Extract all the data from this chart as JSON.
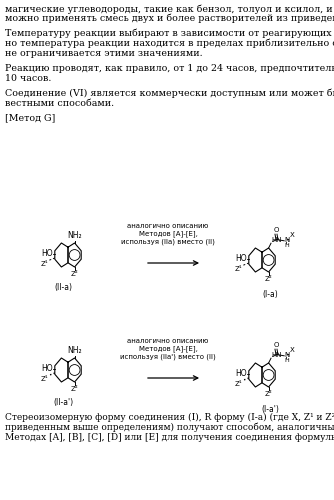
{
  "background": "#ffffff",
  "text_color": "#000000",
  "font_size_body": 6.8,
  "paragraphs": [
    "магические углеводороды, такие как бензол, толуол и ксилол, и другие. Как вариант,",
    "можно применять смесь двух и более растворителей из приведенного списка.",
    "",
    "Температуру реакции выбирают в зависимости от реагирующих соединений. Обыч-",
    "но температура реакции находится в пределах приблизительно от 20°C до 50°C, но",
    "не ограничивается этими значениями.",
    "",
    "Реакцию проводят, как правило, от 1 до 24 часов, предпочтительно – от 30 минут до",
    "10 часов.",
    "",
    "Соединение (VI) является коммерчески доступным или может быть получено из-",
    "вестными способами.",
    "",
    "[Метод G]"
  ],
  "bottom_text": [
    "Стереоизомерную форму соединения (I), R форму (I-a) (где X, Z¹ и Z² соответствуют",
    "приведенным выше определениям) получают способом, аналогичным описанному в",
    "Методах [A], [B], [C], [D] или [E] для получения соединения формулы (I), используя"
  ],
  "reaction1_text": "аналогично описанию\nМетодов [A]-[E],\nиспользуя (IIa) вместо (II)",
  "reaction2_text": "аналогично описанию\nМетодов [A]-[E],\nиспользуя (IIa') вместо (II)",
  "label_IIa": "(II-a)",
  "label_Ia": "(I-a)",
  "label_IIa2": "(II-a')",
  "label_Ia2": "(I-a')"
}
